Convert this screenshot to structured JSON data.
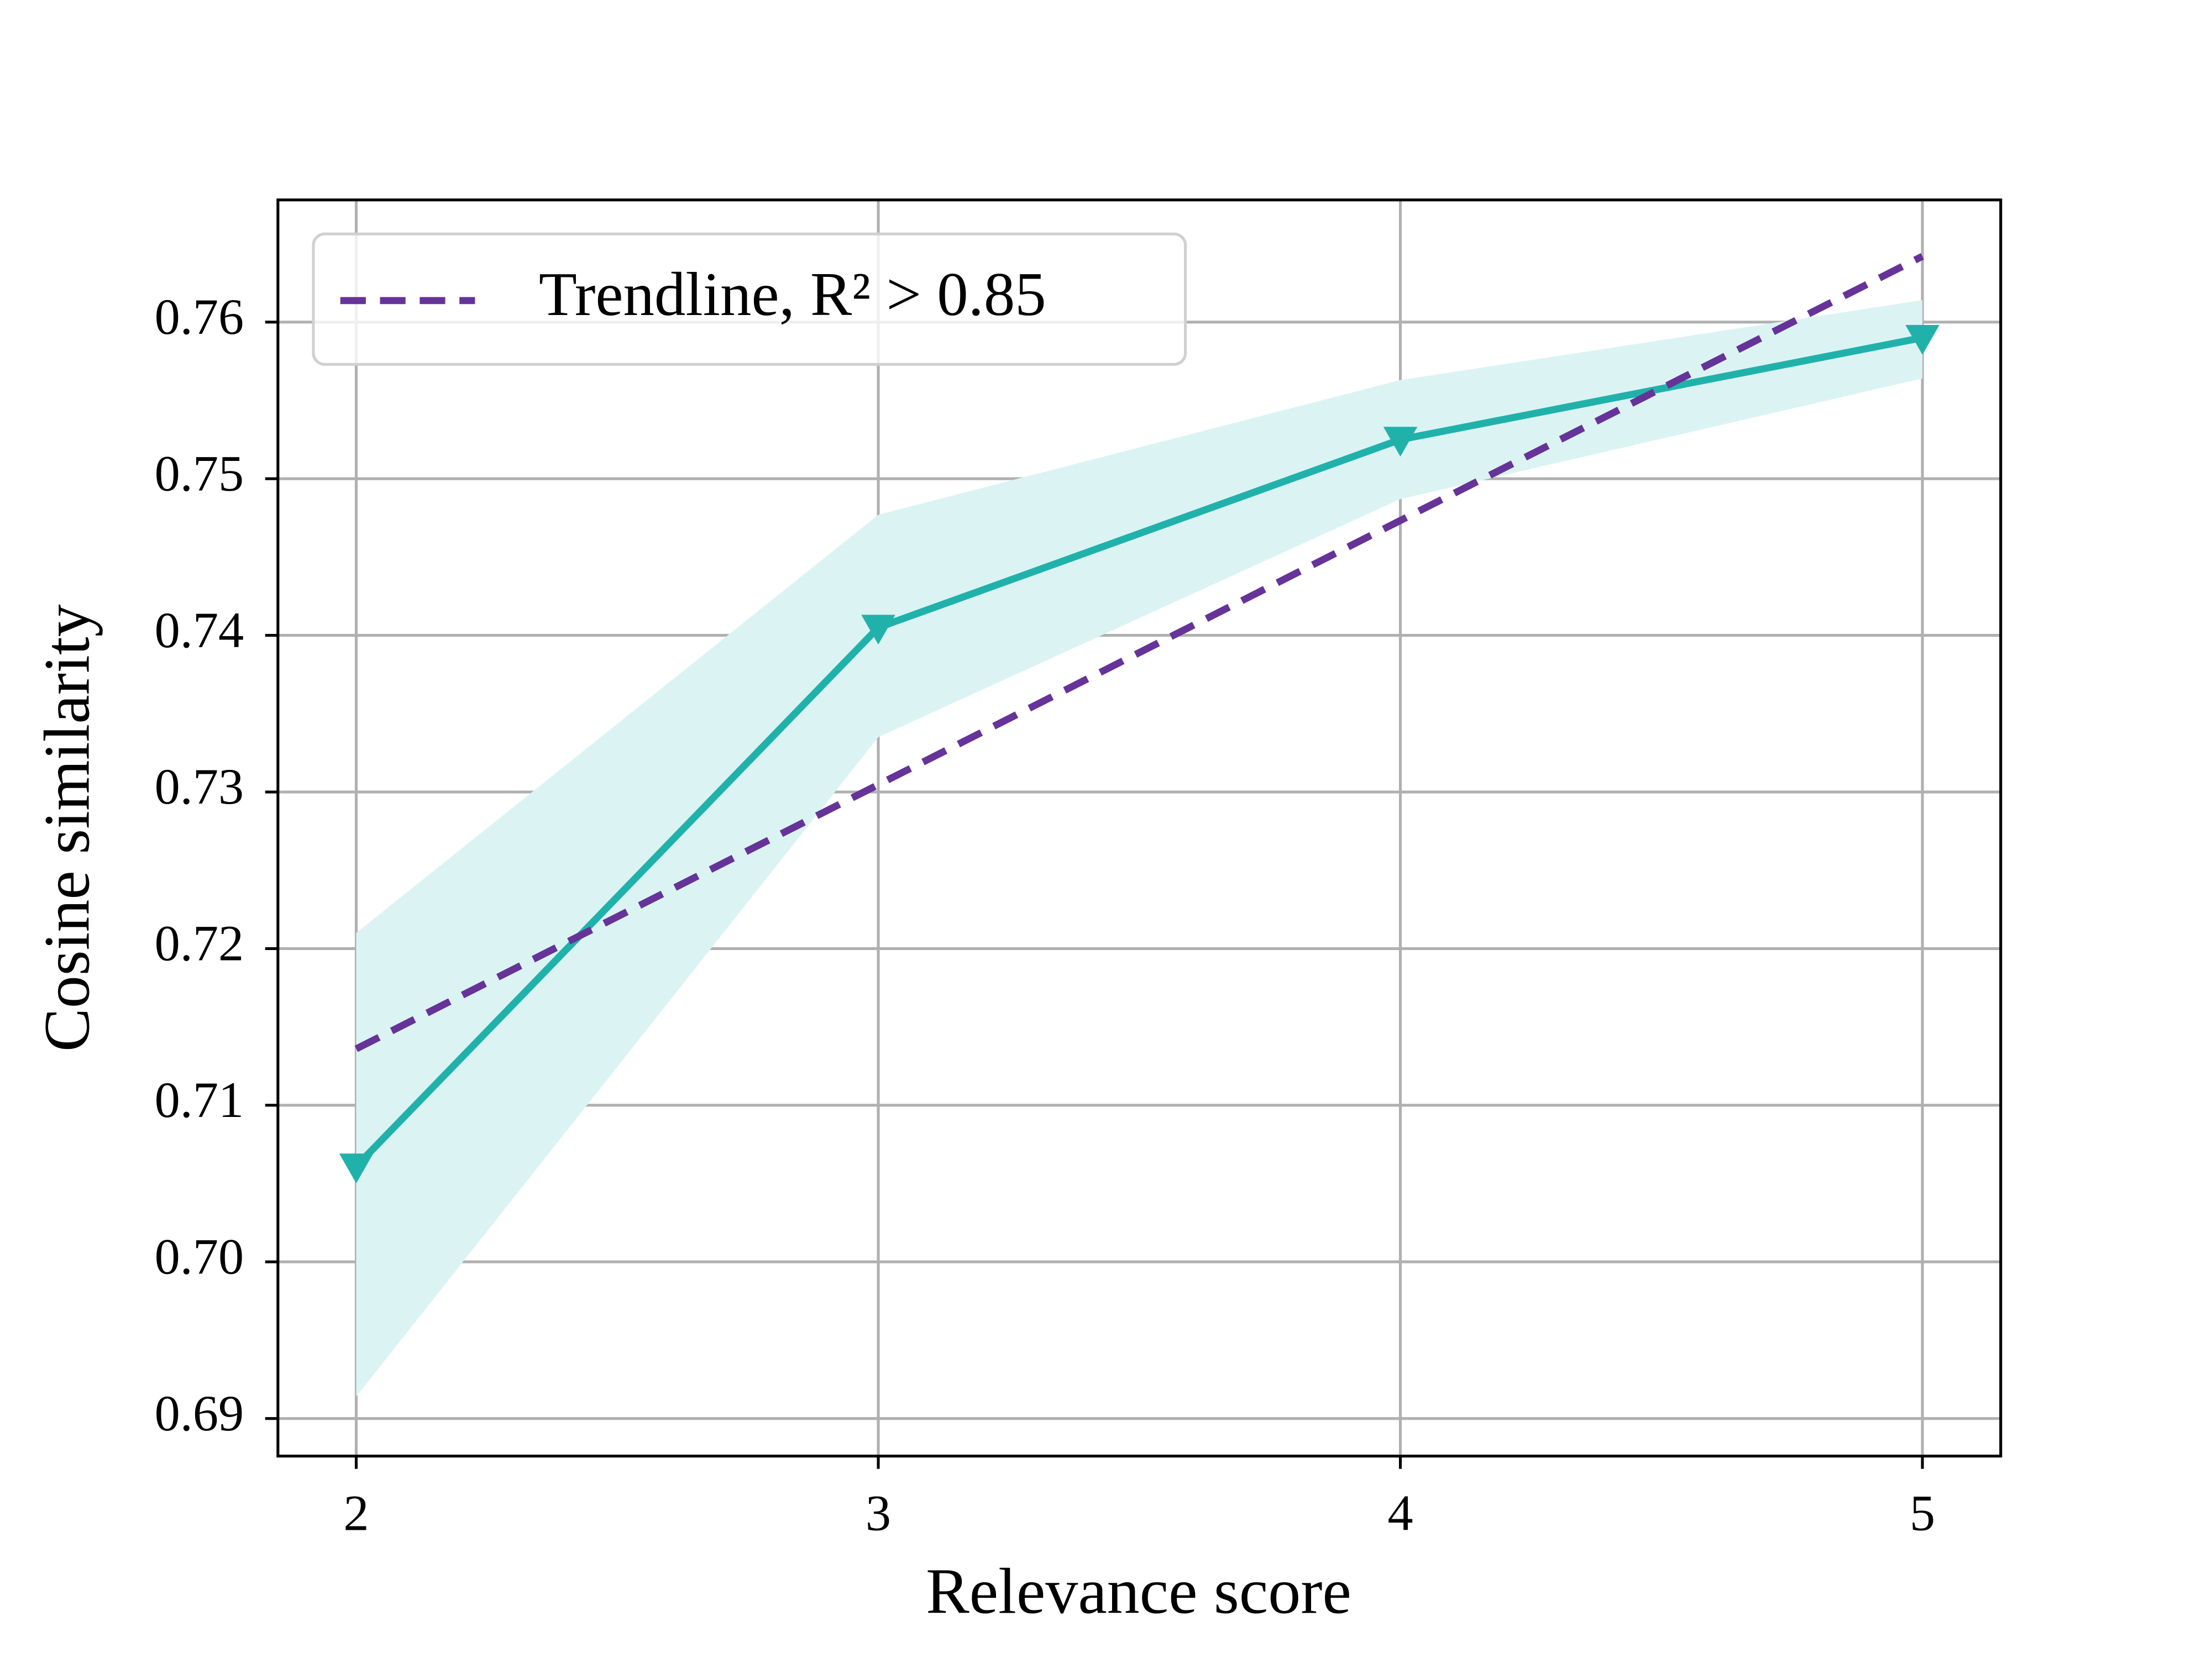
{
  "chart_data": {
    "type": "line",
    "xlabel": "Relevance score",
    "ylabel": "Cosine similarity",
    "xlim": [
      1.85,
      5.15
    ],
    "ylim": [
      0.6876,
      0.7678
    ],
    "xticks": [
      2,
      3,
      4,
      5
    ],
    "yticks": [
      0.69,
      {
        "value": 0.7,
        "label": "0.70"
      },
      0.71,
      0.72,
      0.73,
      0.74,
      0.75,
      0.76
    ],
    "grid": true,
    "legend": "upper left",
    "series": [
      {
        "x": [
          2,
          3,
          4,
          5
        ],
        "values": [
          0.7061,
          0.7405,
          0.7525,
          0.759
        ],
        "color": "#20b2aa",
        "marker": "triangle-down",
        "lower": [
          0.6914,
          0.7335,
          0.7487,
          0.7564
        ],
        "upper": [
          0.721,
          0.7477,
          0.7563,
          0.7614
        ],
        "band_color": "#dbf4f3"
      },
      {
        "name": "Trendline, R² > 0.85",
        "x": [
          2,
          5
        ],
        "values": [
          0.7136,
          0.7642
        ],
        "color": "#663399",
        "dashed": true
      }
    ]
  }
}
